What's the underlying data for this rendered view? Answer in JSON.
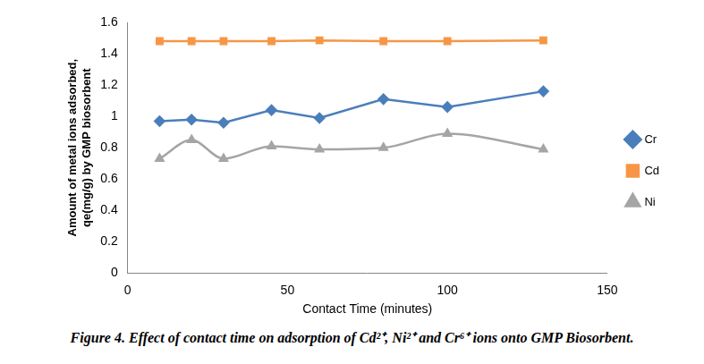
{
  "chart_data": {
    "type": "line",
    "caption": "Figure 4. Effect of contact time on adsorption of Cd²⁺, Ni²⁺ and Cr⁶⁺ ions onto GMP Biosorbent.",
    "x_label": "Contact Time (minutes)",
    "y_label": [
      "Amount of metal ions adsorbed,",
      "qe(mg/g) by GMP biosorbent"
    ],
    "x": [
      10,
      20,
      30,
      45,
      60,
      80,
      100,
      130
    ],
    "series": [
      {
        "name": "Cr",
        "color": "#4a7ebb",
        "marker": "diamond",
        "line_style": "solid",
        "values": [
          0.97,
          0.98,
          0.96,
          1.04,
          0.99,
          1.11,
          1.06,
          1.16
        ]
      },
      {
        "name": "Cd",
        "color": "#f79646",
        "marker": "square",
        "line_style": "solid",
        "values": [
          1.48,
          1.48,
          1.48,
          1.48,
          1.485,
          1.48,
          1.48,
          1.485
        ]
      },
      {
        "name": "Ni",
        "color": "#a5a5a5",
        "marker": "triangle",
        "line_style": "smooth",
        "values": [
          0.73,
          0.85,
          0.73,
          0.81,
          0.79,
          0.8,
          0.89,
          0.79
        ]
      }
    ],
    "xlim": [
      0,
      150
    ],
    "xticks": [
      0,
      50,
      100,
      150
    ],
    "ylim": [
      0,
      1.6
    ],
    "yticks": [
      0,
      0.2,
      0.4,
      0.6,
      0.8,
      1,
      1.2,
      1.4,
      1.6
    ],
    "grid": false,
    "legend": "right"
  }
}
